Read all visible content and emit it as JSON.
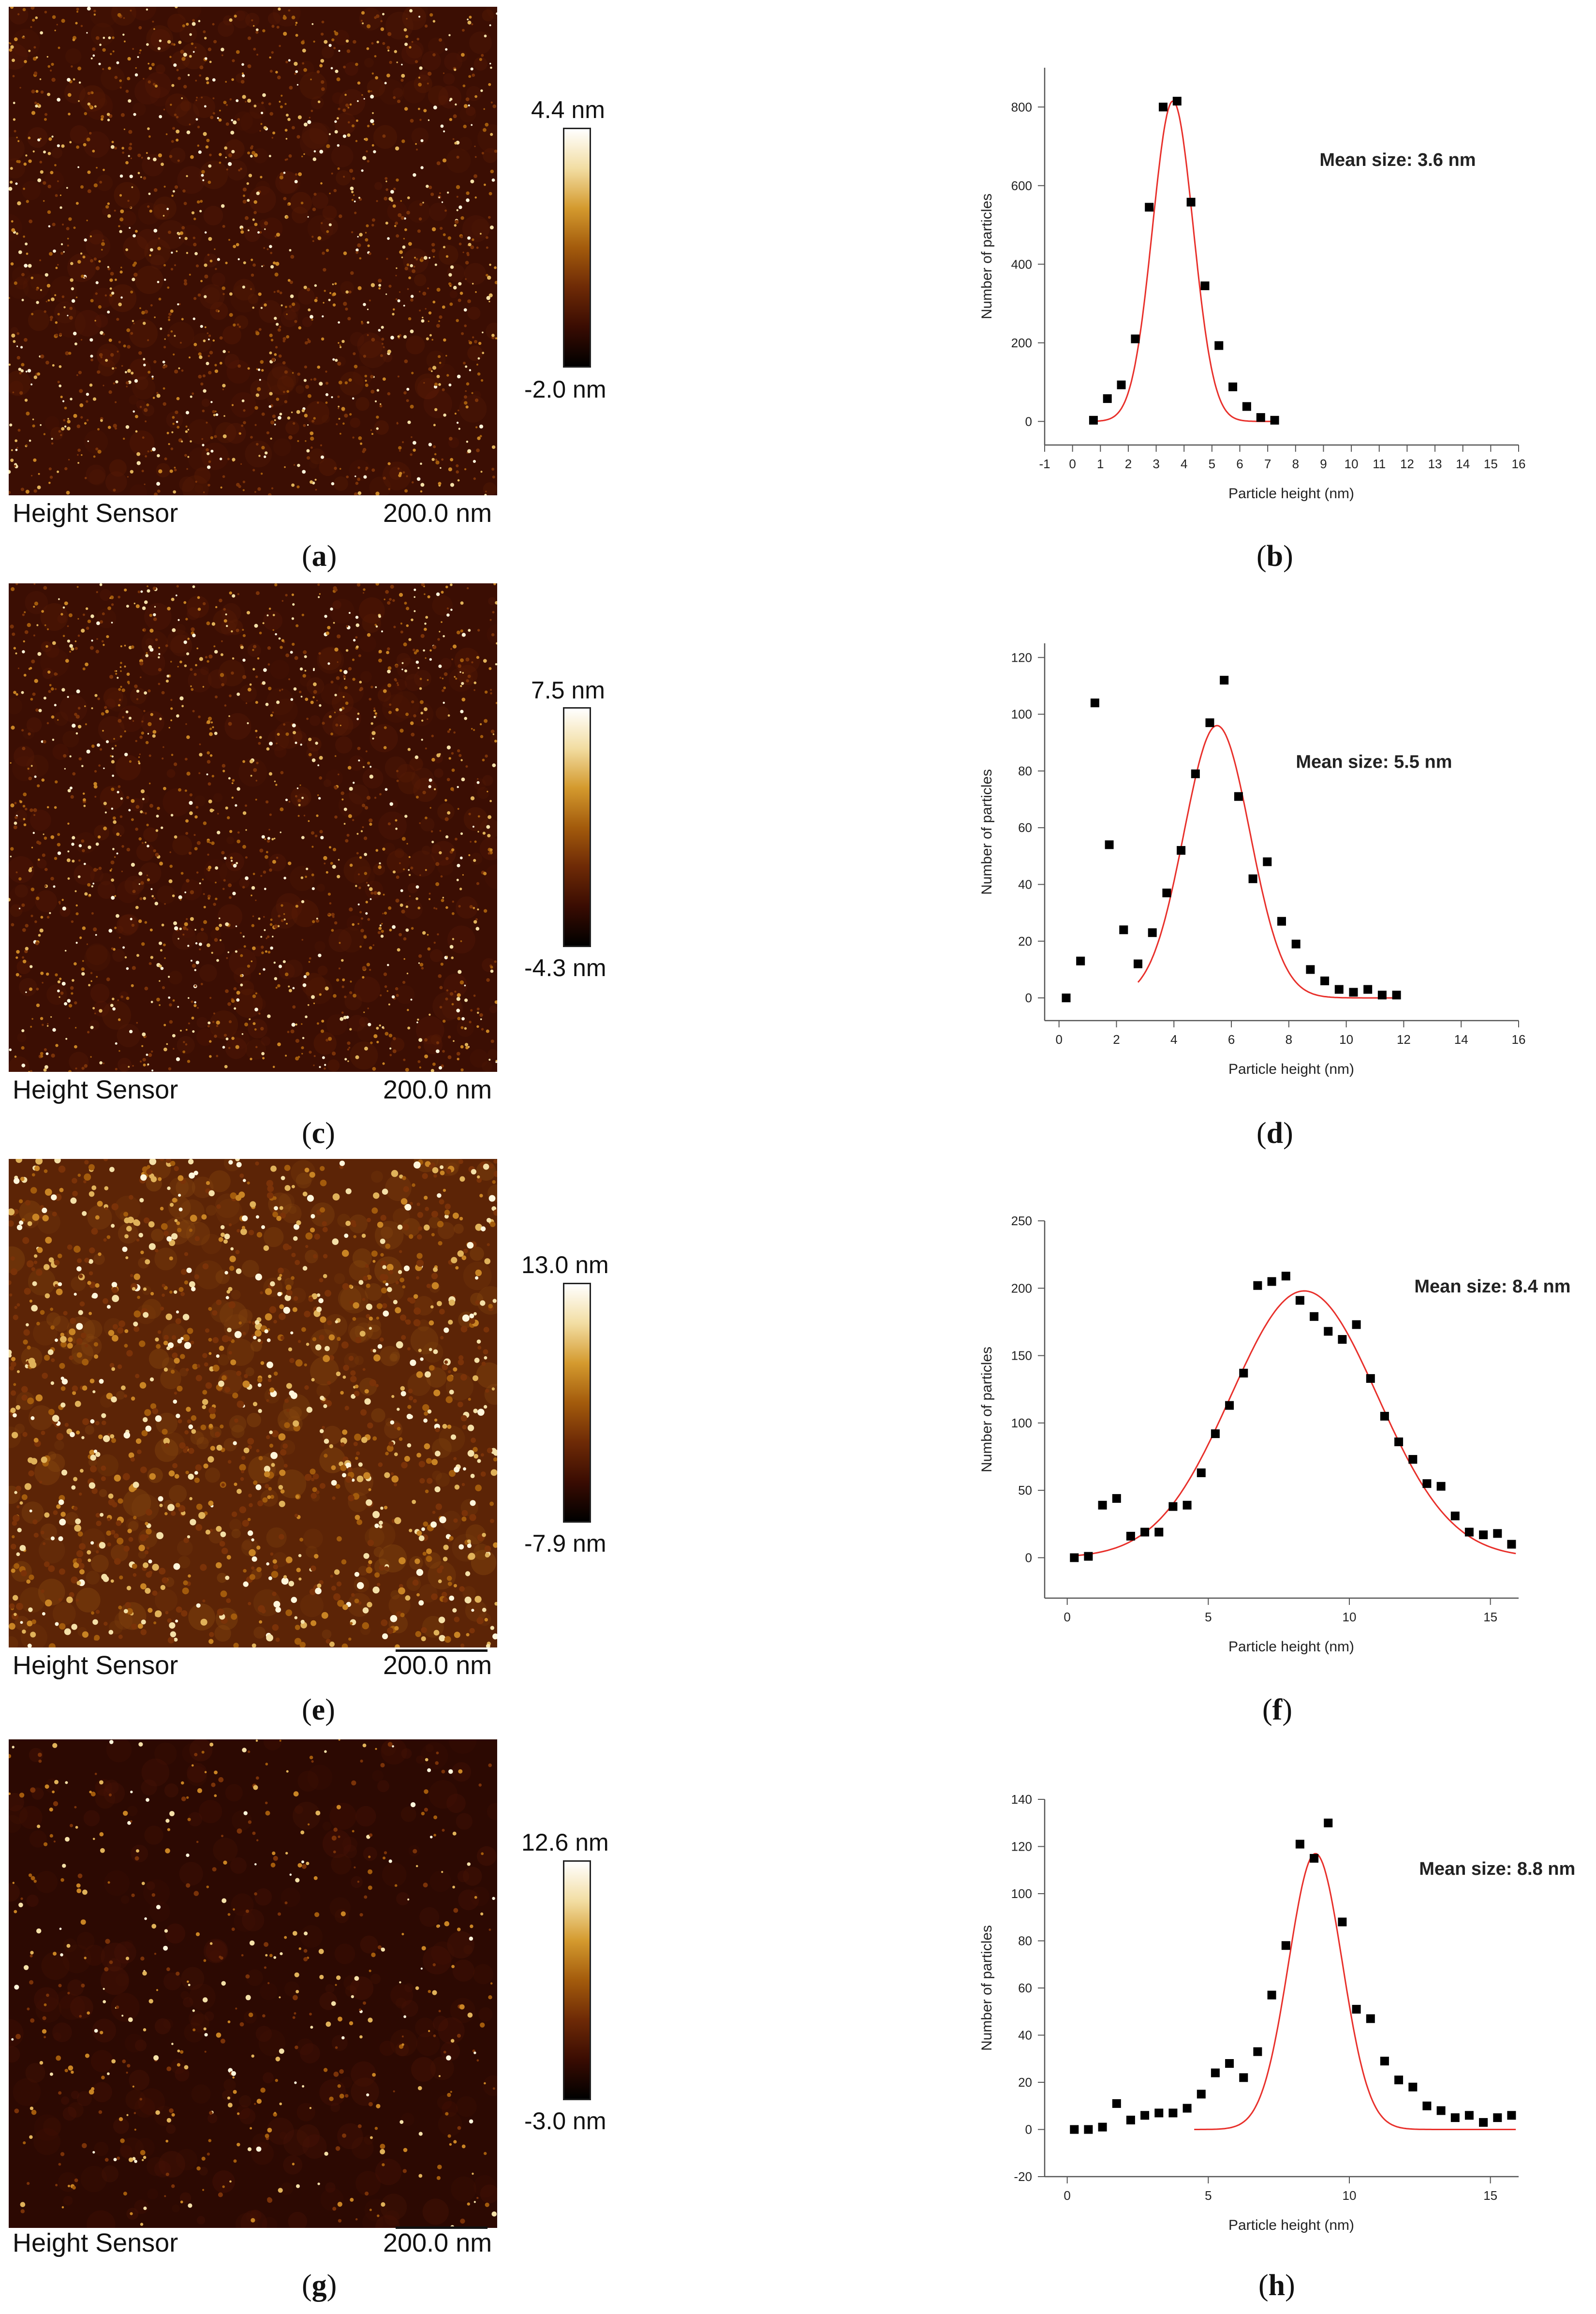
{
  "colors": {
    "afm_gradient": [
      "#000000",
      "#3a0c02",
      "#6e2a06",
      "#a35b0c",
      "#d49a2e",
      "#f2dda2",
      "#ffffff"
    ],
    "fit_line": "#e8302b",
    "data_marker": "#000000"
  },
  "panels": [
    {
      "id": "a",
      "afm": {
        "scale_max": "4.4 nm",
        "scale_min": "-2.0 nm",
        "sensor_label": "Height Sensor",
        "scale_bar_label": "200.0 nm",
        "density": "high"
      },
      "label_image": "a",
      "label_chart": "b"
    },
    {
      "id": "c",
      "afm": {
        "scale_max": "7.5 nm",
        "scale_min": "-4.3 nm",
        "sensor_label": "Height Sensor",
        "scale_bar_label": "200.0 nm",
        "density": "high"
      },
      "label_image": "c",
      "label_chart": "d"
    },
    {
      "id": "e",
      "afm": {
        "scale_max": "13.0 nm",
        "scale_min": "-7.9 nm",
        "sensor_label": "Height Sensor",
        "scale_bar_label": "200.0 nm",
        "density": "medium"
      },
      "label_image": "e",
      "label_chart": "f"
    },
    {
      "id": "g",
      "afm": {
        "scale_max": "12.6 nm",
        "scale_min": "-3.0 nm",
        "sensor_label": "Height Sensor",
        "scale_bar_label": "200.0 nm",
        "density": "sparse"
      },
      "label_image": "g",
      "label_chart": "h"
    }
  ],
  "chart_data": [
    {
      "type": "scatter",
      "panel": "b",
      "xlabel": "Particle height (nm)",
      "ylabel": "Number of particles",
      "annotation": "Mean size: 3.6 nm",
      "xlim": [
        -1,
        16
      ],
      "ylim": [
        -60,
        900
      ],
      "xticks": [
        -1,
        0,
        1,
        2,
        3,
        4,
        5,
        6,
        7,
        8,
        9,
        10,
        11,
        12,
        13,
        14,
        15,
        16
      ],
      "yticks": [
        0,
        200,
        400,
        600,
        800
      ],
      "x": [
        0.75,
        1.25,
        1.75,
        2.25,
        2.75,
        3.25,
        3.75,
        4.25,
        4.75,
        5.25,
        5.75,
        6.25,
        6.75,
        7.25
      ],
      "y": [
        3,
        58,
        93,
        210,
        545,
        800,
        815,
        558,
        345,
        193,
        88,
        38,
        10,
        3
      ],
      "fit": {
        "model": "gaussian",
        "center": 3.6,
        "sigma": 0.73,
        "amplitude": 815,
        "baseline": 0,
        "x_range": [
          0.75,
          7.25
        ]
      }
    },
    {
      "type": "scatter",
      "panel": "d",
      "xlabel": "Particle height (nm)",
      "ylabel": "Number of particles",
      "annotation": "Mean size: 5.5 nm",
      "xlim": [
        -0.5,
        16
      ],
      "ylim": [
        -8,
        125
      ],
      "xticks": [
        0,
        2,
        4,
        6,
        8,
        10,
        12,
        14,
        16
      ],
      "yticks": [
        0,
        20,
        40,
        60,
        80,
        100,
        120
      ],
      "x": [
        0.25,
        0.75,
        1.25,
        1.75,
        2.25,
        2.75,
        3.25,
        3.75,
        4.25,
        4.75,
        5.25,
        5.75,
        6.25,
        6.75,
        7.25,
        7.75,
        8.25,
        8.75,
        9.25,
        9.75,
        10.25,
        10.75,
        11.25,
        11.75
      ],
      "y": [
        0,
        13,
        104,
        54,
        24,
        12,
        23,
        37,
        52,
        79,
        97,
        112,
        71,
        42,
        48,
        27,
        19,
        10,
        6,
        3,
        2,
        3,
        1,
        1
      ],
      "fit": {
        "model": "gaussian",
        "center": 5.5,
        "sigma": 1.15,
        "amplitude": 96,
        "baseline": 0,
        "x_range": [
          2.75,
          11.75
        ]
      }
    },
    {
      "type": "scatter",
      "panel": "f",
      "xlabel": "Particle height (nm)",
      "ylabel": "Number of particles",
      "annotation": "Mean size: 8.4 nm",
      "xlim": [
        -0.8,
        16
      ],
      "ylim": [
        -30,
        250
      ],
      "xticks": [
        0,
        5,
        10,
        15
      ],
      "yticks": [
        0,
        50,
        100,
        150,
        200,
        250
      ],
      "x": [
        0.25,
        0.75,
        1.25,
        1.75,
        2.25,
        2.75,
        3.25,
        3.75,
        4.25,
        4.75,
        5.25,
        5.75,
        6.25,
        6.75,
        7.25,
        7.75,
        8.25,
        8.75,
        9.25,
        9.75,
        10.25,
        10.75,
        11.25,
        11.75,
        12.25,
        12.75,
        13.25,
        13.75,
        14.25,
        14.75,
        15.25,
        15.75
      ],
      "y": [
        0,
        1,
        39,
        44,
        16,
        19,
        19,
        38,
        39,
        63,
        92,
        113,
        137,
        202,
        205,
        209,
        191,
        179,
        168,
        162,
        173,
        133,
        105,
        86,
        73,
        55,
        53,
        31,
        19,
        17,
        18,
        10
      ],
      "fit": {
        "model": "gaussian",
        "center": 8.4,
        "sigma": 2.6,
        "amplitude": 198,
        "baseline": 0,
        "x_range": [
          0.25,
          15.9
        ]
      }
    },
    {
      "type": "scatter",
      "panel": "h",
      "xlabel": "Particle height (nm)",
      "ylabel": "Number of particles",
      "annotation": "Mean size: 8.8 nm",
      "xlim": [
        -0.8,
        16
      ],
      "ylim": [
        -20,
        140
      ],
      "xticks": [
        0,
        5,
        10,
        15
      ],
      "yticks": [
        -20,
        0,
        20,
        40,
        60,
        80,
        100,
        120,
        140
      ],
      "x": [
        0.25,
        0.75,
        1.25,
        1.75,
        2.25,
        2.75,
        3.25,
        3.75,
        4.25,
        4.75,
        5.25,
        5.75,
        6.25,
        6.75,
        7.25,
        7.75,
        8.25,
        8.75,
        9.25,
        9.75,
        10.25,
        10.75,
        11.25,
        11.75,
        12.25,
        12.75,
        13.25,
        13.75,
        14.25,
        14.75,
        15.25,
        15.75
      ],
      "y": [
        0,
        0,
        1,
        11,
        4,
        6,
        7,
        7,
        9,
        15,
        24,
        28,
        22,
        33,
        57,
        78,
        121,
        115,
        130,
        88,
        51,
        47,
        29,
        21,
        18,
        10,
        8,
        5,
        6,
        3,
        5,
        6
      ],
      "fit": {
        "model": "gaussian",
        "center": 8.8,
        "sigma": 0.95,
        "amplitude": 117,
        "baseline": 0,
        "x_range": [
          4.5,
          15.9
        ]
      }
    }
  ]
}
